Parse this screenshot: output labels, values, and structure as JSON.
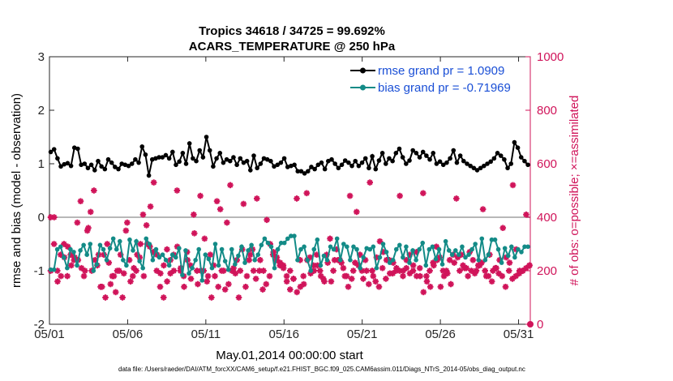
{
  "chart_data": {
    "type": "line",
    "title": "Tropics 34618 / 34725 = 99.692%",
    "subtitle": "ACARS_TEMPERATURE @ 250 hPa",
    "xlabel": "May.01,2014 00:00:00 start",
    "ylabel": "rmse and bias (model - observation)",
    "y2label": "# of obs: o=possible; ×=assimilated",
    "x_tick_labels": [
      "05/01",
      "05/06",
      "05/11",
      "05/16",
      "05/21",
      "05/26",
      "05/31"
    ],
    "x_tick_days": [
      0,
      5,
      10,
      15,
      20,
      25,
      30
    ],
    "xlim": [
      0,
      30.75
    ],
    "ylim": [
      -2,
      3
    ],
    "y_ticks": [
      "-2",
      "-1",
      "0",
      "1",
      "2",
      "3"
    ],
    "y2lim": [
      0,
      1000
    ],
    "y2_ticks": [
      "0",
      "200",
      "400",
      "600",
      "800",
      "1000"
    ],
    "footer": "data file: /Users/raeder/DAI/ATM_forcXX/CAM6_setup/f.e21.FHIST_BGC.f09_025.CAM6assim.011/Diags_NTrS_2014-05/obs_diag_output.nc",
    "series": [
      {
        "name": "rmse grand pr = 1.0909",
        "axis": "left",
        "color": "#000000",
        "values": [
          1.22,
          1.27,
          1.1,
          0.95,
          0.99,
          1.01,
          0.96,
          1.3,
          1.28,
          0.98,
          1.0,
          0.92,
          0.98,
          0.88,
          1.05,
          0.95,
          0.9,
          1.08,
          1.02,
          0.94,
          0.9,
          1.0,
          0.98,
          0.96,
          1.0,
          1.08,
          1.02,
          1.32,
          1.17,
          0.78,
          1.08,
          1.1,
          1.12,
          1.12,
          1.16,
          1.1,
          1.22,
          0.98,
          1.04,
          1.2,
          1.0,
          1.38,
          1.1,
          1.05,
          1.25,
          1.12,
          1.5,
          1.25,
          0.95,
          1.1,
          1.2,
          1.02,
          1.08,
          1.05,
          1.12,
          0.98,
          1.1,
          1.02,
          1.05,
          0.88,
          1.15,
          0.92,
          1.0,
          1.1,
          1.08,
          1.05,
          0.95,
          0.98,
          1.02,
          1.1,
          0.94,
          0.96,
          0.98,
          0.86,
          0.86,
          0.82,
          0.86,
          0.94,
          0.9,
          0.98,
          1.02,
          0.9,
          1.05,
          1.08,
          1.0,
          0.92,
          0.98,
          1.06,
          1.02,
          0.96,
          1.05,
          0.96,
          1.02,
          1.1,
          0.92,
          1.14,
          0.9,
          1.06,
          1.2,
          1.0,
          1.1,
          1.05,
          1.2,
          1.28,
          1.12,
          1.0,
          1.06,
          1.25,
          1.2,
          1.12,
          1.22,
          1.15,
          1.08,
          1.2,
          1.0,
          1.04,
          0.98,
          1.02,
          1.1,
          1.25,
          1.02,
          1.15,
          1.05,
          1.0,
          0.96,
          0.92,
          0.88,
          0.92,
          0.96,
          1.0,
          1.04,
          1.1,
          1.2,
          1.15,
          1.08,
          0.92,
          1.0,
          1.4,
          1.3,
          1.12,
          1.05,
          0.98
        ]
      },
      {
        "name": "bias grand pr = -0.71969",
        "axis": "left",
        "color": "#138b87",
        "values": [
          -0.98,
          -0.98,
          -0.6,
          -0.55,
          -0.75,
          -0.95,
          -0.6,
          -0.65,
          -0.9,
          -0.62,
          -0.52,
          -0.7,
          -0.5,
          -1.0,
          -0.88,
          -0.52,
          -0.6,
          -0.8,
          -0.58,
          -0.4,
          -0.6,
          -0.45,
          -0.8,
          -0.9,
          -0.42,
          -0.62,
          -0.45,
          -0.82,
          -0.95,
          -0.4,
          -0.5,
          -0.8,
          -0.6,
          -0.75,
          -0.7,
          -0.8,
          -0.9,
          -0.7,
          -0.75,
          -0.58,
          -1.08,
          -0.62,
          -1.05,
          -0.95,
          -0.8,
          -0.6,
          -1.18,
          -0.7,
          -0.78,
          -0.95,
          -0.5,
          -0.9,
          -0.6,
          -0.82,
          -0.98,
          -0.6,
          -0.88,
          -0.72,
          -0.55,
          -0.85,
          -0.62,
          -0.52,
          -0.8,
          -0.7,
          -0.52,
          -0.4,
          -0.48,
          -0.55,
          -0.95,
          -0.6,
          -0.48,
          -0.48,
          -0.4,
          -0.35,
          -0.35,
          -0.8,
          -0.6,
          -0.55,
          -0.8,
          -1.0,
          -0.6,
          -0.42,
          -0.9,
          -0.72,
          -0.8,
          -0.55,
          -0.6,
          -0.4,
          -0.8,
          -0.5,
          -0.55,
          -0.8,
          -0.55,
          -0.6,
          -0.95,
          -0.75,
          -0.58,
          -0.6,
          -0.55,
          -0.95,
          -0.75,
          -0.5,
          -0.65,
          -0.85,
          -0.8,
          -0.6,
          -0.52,
          -0.75,
          -0.55,
          -0.85,
          -0.62,
          -0.8,
          -0.6,
          -0.48,
          -0.9,
          -0.6,
          -0.55,
          -0.78,
          -0.6,
          -0.88,
          -0.45,
          -0.62,
          -0.7,
          -0.62,
          -0.7,
          -0.55,
          -0.75,
          -0.7,
          -0.6,
          -0.5,
          -0.8,
          -0.4,
          -0.8,
          -0.7,
          -0.42,
          -0.42,
          -0.6,
          -0.85,
          -0.58,
          -0.72,
          -0.55,
          -0.75,
          -0.6,
          -0.65,
          -0.55,
          -0.55
        ]
      },
      {
        "name": "possible",
        "axis": "right",
        "color": "#d0145a",
        "values": [
          200,
          400,
          160,
          180,
          250,
          290,
          220,
          250,
          240,
          210,
          200,
          360,
          200,
          240,
          260,
          140,
          100,
          230,
          180,
          120,
          200,
          100,
          350,
          240,
          180,
          200,
          250,
          410,
          370,
          290,
          270,
          200,
          140,
          100,
          280,
          240,
          200,
          290,
          210,
          140,
          240,
          170,
          340,
          150,
          200,
          320,
          180,
          100,
          180,
          140,
          200,
          130,
          150,
          200,
          190,
          100,
          280,
          140,
          240,
          280,
          170,
          200,
          130,
          150,
          180,
          260,
          240,
          220,
          220,
          180,
          130,
          170,
          120,
          140,
          150,
          240,
          190,
          200,
          220,
          180,
          160,
          230,
          160,
          240,
          240,
          230,
          180,
          140,
          170,
          230,
          220,
          200,
          240,
          150,
          200,
          160,
          140,
          210,
          170,
          240,
          190,
          200,
          200,
          180,
          210,
          190,
          220,
          180,
          180,
          120,
          160,
          140,
          220,
          240,
          140,
          180,
          190,
          150,
          230,
          250,
          260,
          210,
          180,
          200,
          190,
          220,
          230,
          200,
          180,
          160,
          210,
          190,
          180,
          140,
          200,
          170,
          180,
          190,
          200,
          210,
          220
        ]
      },
      {
        "name": "assimilated",
        "axis": "right",
        "color": "#d0145a",
        "values": [
          400,
          300,
          200,
          260,
          300,
          180,
          260,
          240,
          380,
          460,
          180,
          350,
          420,
          500,
          220,
          140,
          260,
          300,
          150,
          180,
          200,
          260,
          190,
          380,
          160,
          210,
          260,
          300,
          180,
          300,
          440,
          530,
          260,
          190,
          220,
          160,
          190,
          260,
          500,
          200,
          180,
          270,
          220,
          410,
          200,
          480,
          200,
          160,
          260,
          220,
          460,
          430,
          200,
          380,
          520,
          210,
          240,
          200,
          450,
          180,
          260,
          200,
          470,
          240,
          200,
          390,
          300,
          270,
          250,
          230,
          210,
          160,
          200,
          170,
          470,
          240,
          180,
          490,
          250,
          220,
          260,
          200,
          170,
          260,
          320,
          200,
          280,
          240,
          210,
          180,
          480,
          200,
          420,
          260,
          170,
          200,
          530,
          180,
          250,
          310,
          270,
          240,
          190,
          230,
          210,
          480,
          200,
          240,
          260,
          200,
          270,
          210,
          490,
          180,
          200,
          230,
          290,
          250,
          200,
          200,
          240,
          260,
          470,
          200,
          220,
          210,
          270,
          240,
          200,
          220,
          430,
          180,
          260,
          200,
          210,
          240,
          360,
          250,
          230,
          520,
          280,
          200,
          200,
          410,
          220
        ]
      }
    ]
  }
}
